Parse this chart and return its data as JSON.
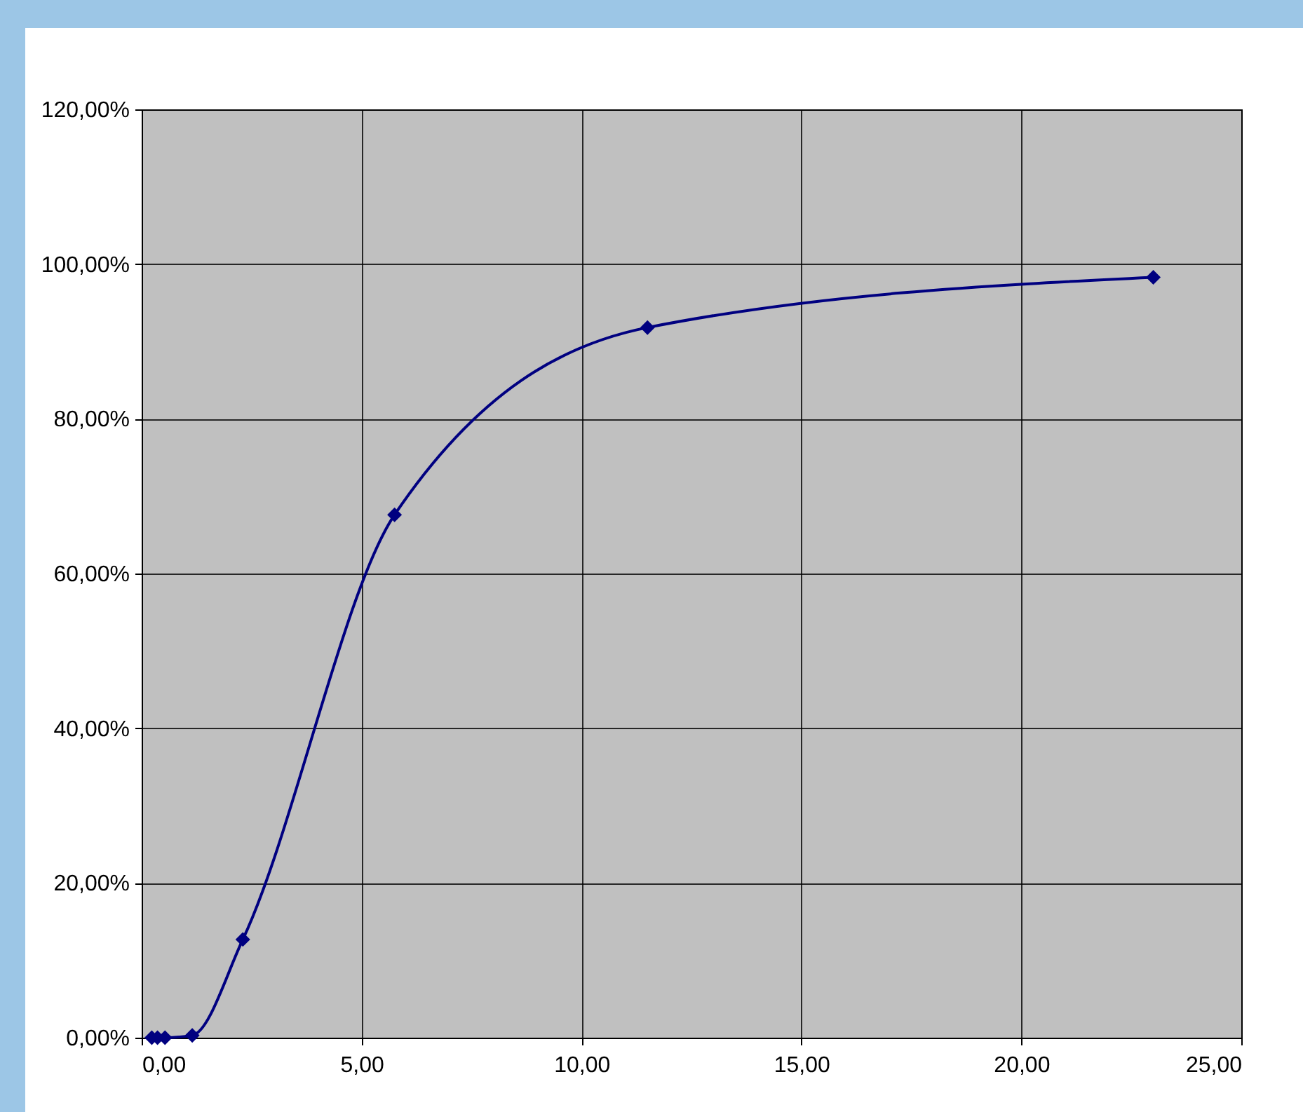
{
  "chart_data": {
    "type": "line",
    "x": [
      0.23,
      0.36,
      0.53,
      1.15,
      2.3,
      5.75,
      11.5,
      23
    ],
    "series": [
      {
        "color": "#000080",
        "values": [
          0,
          0,
          0,
          0.3,
          12.7,
          67.6,
          91.8,
          98.3
        ]
      }
    ],
    "xlim": [
      0,
      25
    ],
    "xticks": [
      {
        "value": 0,
        "label": "0,00"
      },
      {
        "value": 5,
        "label": "5,00"
      },
      {
        "value": 10,
        "label": "10,00"
      },
      {
        "value": 15,
        "label": "15,00"
      },
      {
        "value": 20,
        "label": "20,00"
      },
      {
        "value": 25,
        "label": "25,00"
      }
    ],
    "ylim": [
      0,
      120
    ],
    "yticks": [
      {
        "value": 0,
        "label": "0,00%"
      },
      {
        "value": 20,
        "label": "20,00%"
      },
      {
        "value": 40,
        "label": "40,00%"
      },
      {
        "value": 60,
        "label": "60,00%"
      },
      {
        "value": 80,
        "label": "80,00%"
      },
      {
        "value": 100,
        "label": "100,00%"
      },
      {
        "value": 120,
        "label": "120,00%"
      }
    ],
    "grid": true,
    "marker": "diamond",
    "line_style": "solid",
    "legend": false
  }
}
